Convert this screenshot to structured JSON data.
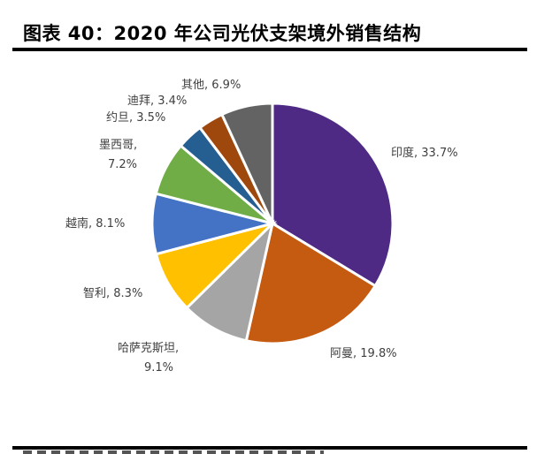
{
  "title": "图表 40：2020 年公司光伏支架境外销售结构",
  "chart_data": {
    "type": "pie",
    "title": "图表 40：2020 年公司光伏支架境外销售结构",
    "start_angle_deg": 90,
    "direction": "clockwise",
    "categories": [
      "印度",
      "阿曼",
      "哈萨克斯坦",
      "智利",
      "越南",
      "墨西哥",
      "约旦",
      "迪拜",
      "其他"
    ],
    "values": [
      33.7,
      19.8,
      9.1,
      8.3,
      8.1,
      7.2,
      3.5,
      3.4,
      6.9
    ],
    "colors": [
      "#4E2A84",
      "#C55A11",
      "#A5A5A5",
      "#FFC000",
      "#4472C4",
      "#70AD47",
      "#255E91",
      "#9E480E",
      "#636363"
    ],
    "labels": [
      "印度, 33.7%",
      "阿曼, 19.8%",
      "哈萨克斯坦, 9.1%",
      "智利, 8.3%",
      "越南, 8.1%",
      "墨西哥, 7.2%",
      "约旦, 3.5%",
      "迪拜, 3.4%",
      "其他, 6.9%"
    ],
    "unit": "%"
  },
  "labels": {
    "india": "印度, 33.7%",
    "oman": "阿曼, 19.8%",
    "kaz_1": "哈萨克斯坦,",
    "kaz_2": "9.1%",
    "chile": "智利, 8.3%",
    "vietnam": "越南, 8.1%",
    "mexico_1": "墨西哥,",
    "mexico_2": "7.2%",
    "jordan": "约旦, 3.5%",
    "dubai": "迪拜, 3.4%",
    "other": "其他, 6.9%"
  }
}
